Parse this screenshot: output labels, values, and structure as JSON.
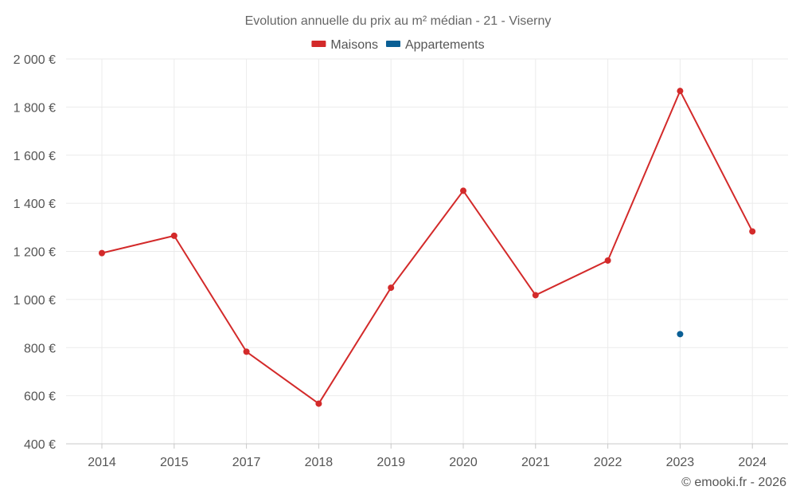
{
  "chart_data": {
    "type": "line",
    "title": "Evolution annuelle du prix au m² médian - 21 - Viserny",
    "categories": [
      "2014",
      "2015",
      "2017",
      "2018",
      "2019",
      "2020",
      "2021",
      "2022",
      "2023",
      "2024"
    ],
    "series": [
      {
        "name": "Maisons",
        "color": "#d32a2a",
        "values": [
          1193,
          1265,
          783,
          567,
          1049,
          1452,
          1018,
          1162,
          1867,
          1283
        ]
      },
      {
        "name": "Appartements",
        "color": "#0a5f95",
        "values": [
          null,
          null,
          null,
          null,
          null,
          null,
          null,
          null,
          856,
          null
        ]
      }
    ],
    "ylim": [
      400,
      2000
    ],
    "yticks": [
      400,
      600,
      800,
      1000,
      1200,
      1400,
      1600,
      1800,
      2000
    ],
    "ytick_labels": [
      "400 €",
      "600 €",
      "800 €",
      "1 000 €",
      "1 200 €",
      "1 400 €",
      "1 600 €",
      "1 800 €",
      "2 000 €"
    ],
    "legend_position": "top-center",
    "grid": true
  },
  "credit": "© emooki.fr - 2026"
}
